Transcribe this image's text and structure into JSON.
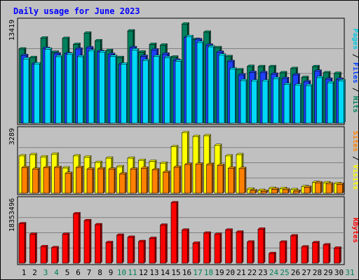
{
  "chart_data": {
    "type": "bar",
    "title": "Daily usage for June 2023",
    "title_color": "#0000ff",
    "background": "#c0c0c0",
    "days": [
      1,
      2,
      3,
      4,
      5,
      6,
      7,
      8,
      9,
      10,
      11,
      12,
      13,
      14,
      15,
      16,
      17,
      18,
      19,
      20,
      21,
      22,
      23,
      24,
      25,
      26,
      27,
      28,
      29,
      30,
      31
    ],
    "weekend_days": [
      3,
      4,
      10,
      11,
      17,
      18,
      24,
      25,
      31
    ],
    "day_label_color": "#000000",
    "weekend_label_color": "#00805c",
    "panels": [
      {
        "name": "hits-files-pages",
        "ymax_label": "13419",
        "ymax": 13419,
        "right_labels": [
          {
            "text": "Pages",
            "color": "#00c8e0"
          },
          {
            "text": " / ",
            "color": "#000000"
          },
          {
            "text": "Files",
            "color": "#0040ff"
          },
          {
            "text": " / ",
            "color": "#000000"
          },
          {
            "text": "Hits",
            "color": "#00805c"
          }
        ],
        "series": [
          {
            "name": "Hits",
            "color": "#00805c",
            "values": [
              10020,
              8870,
              11500,
              9580,
              11450,
              10640,
              12160,
              11130,
              9810,
              8870,
              12460,
              9600,
              10640,
              10550,
              8930,
              13390,
              11320,
              12290,
              10200,
              8990,
              7210,
              7670,
              7640,
              7640,
              6810,
              7380,
              6180,
              7640,
              6810,
              6730,
              0
            ]
          },
          {
            "name": "Files",
            "color": "#1e40ff",
            "values": [
              9130,
              8010,
              10100,
              9350,
              9380,
              10010,
              10170,
              9670,
              9280,
              7980,
              10200,
              9020,
              9890,
              9330,
              8510,
              11590,
              11270,
              10540,
              9590,
              8320,
              6520,
              6850,
              6820,
              6620,
              6020,
              6520,
              5580,
              7020,
              5950,
              5930,
              0
            ]
          },
          {
            "name": "Pages",
            "color": "#00d8f8",
            "values": [
              8670,
              8010,
              9980,
              8980,
              9280,
              8980,
              9750,
              9570,
              9010,
              7990,
              9890,
              8440,
              9010,
              8840,
              8360,
              11700,
              10880,
              10300,
              9190,
              7310,
              5750,
              5690,
              5690,
              6020,
              5230,
              5130,
              5070,
              6150,
              5460,
              5720,
              0
            ]
          }
        ]
      },
      {
        "name": "visits-sites",
        "ymax_label": "3289",
        "ymax": 3289,
        "right_labels": [
          {
            "text": "Sites",
            "color": "#ff8000"
          },
          {
            "text": " / ",
            "color": "#000000"
          },
          {
            "text": "Visits",
            "color": "#ffff00"
          }
        ],
        "series": [
          {
            "name": "Visits",
            "color": "#ffff00",
            "values": [
              2010,
              2080,
              1960,
              2110,
              1360,
              2010,
              1950,
              1660,
              1890,
              1430,
              1890,
              1770,
              1720,
              1620,
              2510,
              3260,
              3060,
              3100,
              2580,
              2010,
              2080,
              220,
              150,
              260,
              250,
              190,
              350,
              580,
              560,
              520,
              0
            ]
          },
          {
            "name": "Sites",
            "color": "#ff8000",
            "values": [
              1380,
              1300,
              1380,
              1390,
              1070,
              1390,
              1300,
              1320,
              1300,
              1040,
              1300,
              1350,
              1260,
              1130,
              1400,
              1550,
              1560,
              1540,
              1500,
              1350,
              1330,
              130,
              100,
              210,
              190,
              110,
              320,
              560,
              500,
              480,
              0
            ]
          }
        ]
      },
      {
        "name": "kbytes",
        "ymax_label": "18353496",
        "ymax": 18353496,
        "right_labels": [
          {
            "text": "KBytes",
            "color": "#ff0000"
          }
        ],
        "series": [
          {
            "name": "KBytes",
            "color": "#ff0000",
            "values": [
              11890000,
              8740000,
              4990000,
              4680000,
              8740000,
              14900000,
              12820000,
              11590000,
              6230000,
              8430000,
              7820000,
              6530000,
              7480000,
              11470000,
              18210000,
              9980000,
              6050000,
              9070000,
              8700000,
              9980000,
              9370000,
              6380000,
              10260000,
              2920000,
              6360000,
              8240000,
              4900000,
              6200000,
              5520000,
              4540000,
              0
            ]
          }
        ]
      }
    ]
  }
}
